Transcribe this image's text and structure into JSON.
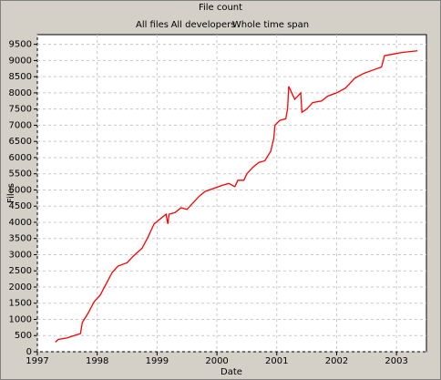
{
  "chart_data": {
    "type": "line",
    "title": "File count",
    "filters": [
      "All files",
      "All developers",
      "Whole time span"
    ],
    "x_label": "Date",
    "y_label": "Files",
    "x": [
      1997.3,
      1997.35,
      1997.5,
      1997.65,
      1997.72,
      1997.75,
      1997.85,
      1997.95,
      1998.05,
      1998.15,
      1998.25,
      1998.35,
      1998.5,
      1998.6,
      1998.75,
      1998.85,
      1998.95,
      1999.05,
      1999.15,
      1999.18,
      1999.2,
      1999.3,
      1999.4,
      1999.5,
      1999.6,
      1999.7,
      1999.8,
      1999.95,
      2000.1,
      2000.2,
      2000.3,
      2000.35,
      2000.45,
      2000.5,
      2000.6,
      2000.7,
      2000.8,
      2000.9,
      2000.95,
      2000.97,
      2001.05,
      2001.15,
      2001.18,
      2001.2,
      2001.25,
      2001.3,
      2001.4,
      2001.42,
      2001.5,
      2001.6,
      2001.75,
      2001.85,
      2002.0,
      2002.15,
      2002.3,
      2002.45,
      2002.6,
      2002.75,
      2002.8,
      2002.95,
      2003.1,
      2003.35
    ],
    "values": [
      300,
      380,
      430,
      520,
      560,
      900,
      1200,
      1550,
      1750,
      2100,
      2450,
      2650,
      2750,
      2950,
      3200,
      3550,
      3950,
      4100,
      4250,
      3950,
      4250,
      4300,
      4450,
      4400,
      4600,
      4800,
      4950,
      5050,
      5150,
      5200,
      5100,
      5300,
      5300,
      5500,
      5700,
      5850,
      5900,
      6200,
      6600,
      7000,
      7150,
      7200,
      7500,
      8200,
      8000,
      7800,
      8000,
      7400,
      7500,
      7700,
      7750,
      7900,
      8000,
      8150,
      8450,
      8600,
      8700,
      8800,
      9150,
      9200,
      9250,
      9300
    ],
    "color": "#ff0000",
    "xlim": [
      1997,
      2003.5
    ],
    "xticks": [
      1997,
      1998,
      1999,
      2000,
      2001,
      2002,
      2003
    ],
    "ylim": [
      0,
      9800
    ],
    "yticks": [
      0,
      500,
      1000,
      1500,
      2000,
      2500,
      3000,
      3500,
      4000,
      4500,
      5000,
      5500,
      6000,
      6500,
      7000,
      7500,
      8000,
      8500,
      9000,
      9500
    ],
    "grid": true
  }
}
